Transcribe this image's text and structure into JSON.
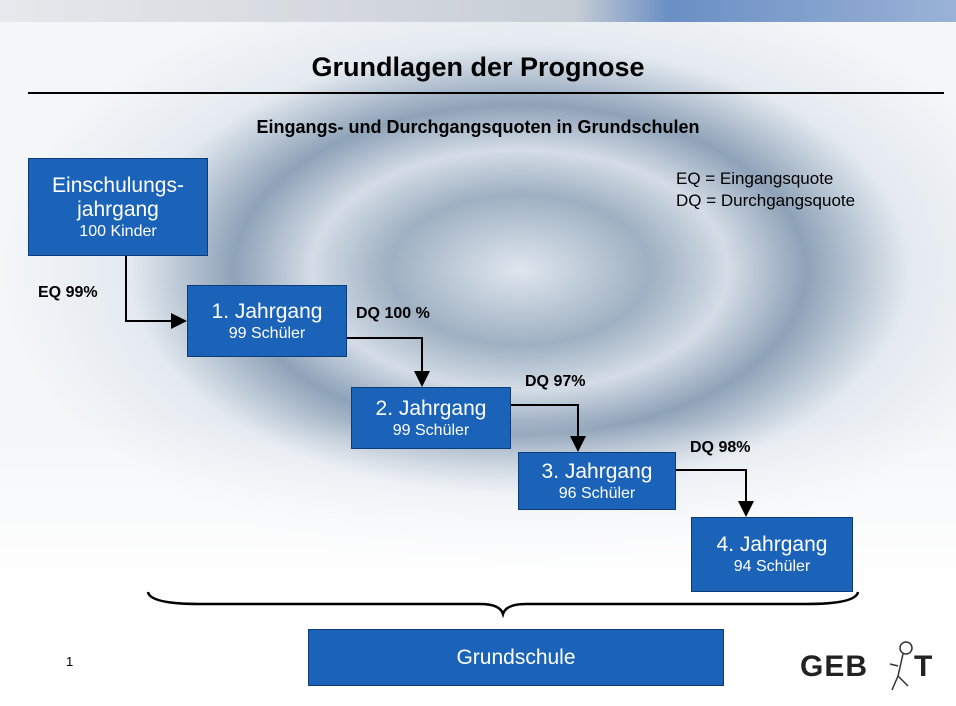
{
  "header": {
    "title": "Grundlagen der Prognose",
    "subtitle": "Eingangs- und Durchgangsquoten in Grundschulen"
  },
  "legend": [
    "EQ = Eingangsquote",
    "DQ = Durchgangsquote"
  ],
  "nodes": [
    {
      "lines": [
        "Einschulungs-",
        "jahrgang"
      ],
      "sub": "100 Kinder"
    },
    {
      "lines": [
        "1. Jahrgang"
      ],
      "sub": "99 Schüler"
    },
    {
      "lines": [
        "2. Jahrgang"
      ],
      "sub": "99 Schüler"
    },
    {
      "lines": [
        "3. Jahrgang"
      ],
      "sub": "96 Schüler"
    },
    {
      "lines": [
        "4. Jahrgang"
      ],
      "sub": "94 Schüler"
    }
  ],
  "edges": [
    {
      "label": "EQ 99%"
    },
    {
      "label": "DQ 100 %"
    },
    {
      "label": "DQ 97%"
    },
    {
      "label": "DQ 98%"
    }
  ],
  "group": {
    "label": "Grundschule"
  },
  "footer": {
    "page": "1",
    "logo": [
      "GEB",
      "T"
    ]
  }
}
